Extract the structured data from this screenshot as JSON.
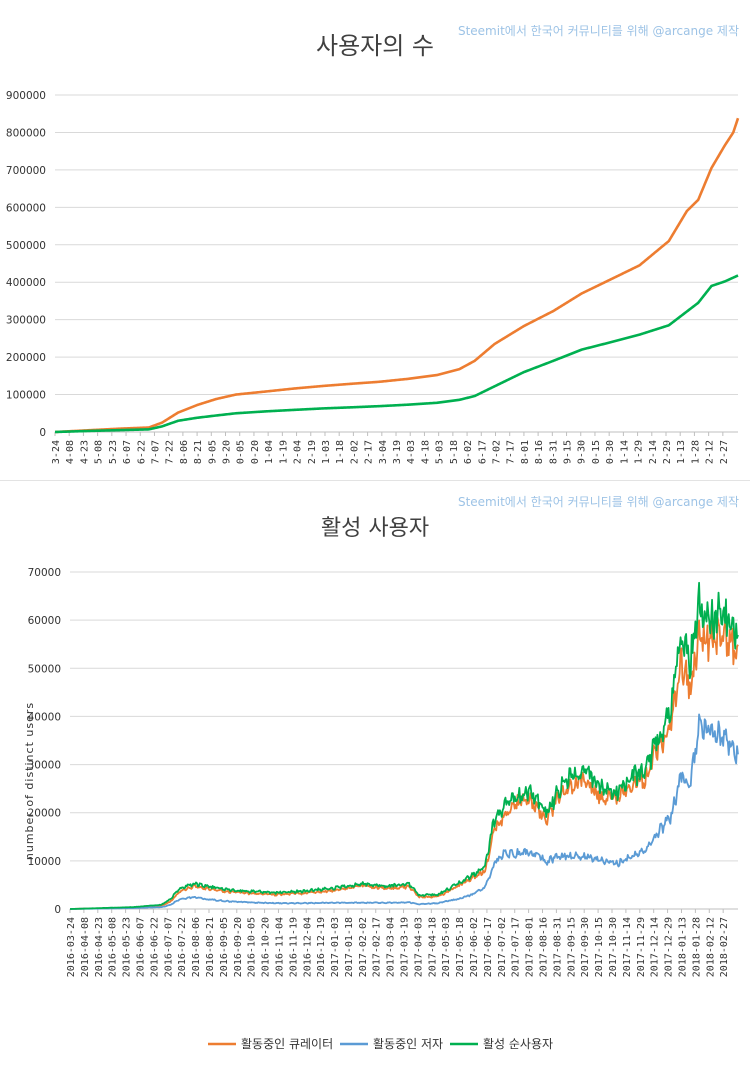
{
  "credit": "Steemit에서 한국어 커뮤니티를 위해 @arcange 제작",
  "chart_data": [
    {
      "type": "line",
      "title": "사용자의 수",
      "xlabel": "",
      "ylabel": "",
      "ylim": [
        0,
        900000
      ],
      "yticks": [
        0,
        100000,
        200000,
        300000,
        400000,
        500000,
        600000,
        700000,
        800000,
        900000
      ],
      "grid": true,
      "x_tick_labels": [
        "3-24",
        "4-08",
        "4-23",
        "5-08",
        "5-23",
        "6-07",
        "6-22",
        "7-07",
        "7-22",
        "8-06",
        "8-21",
        "9-05",
        "9-20",
        "0-05",
        "0-20",
        "1-04",
        "1-19",
        "2-04",
        "2-19",
        "1-03",
        "1-18",
        "2-02",
        "2-17",
        "3-04",
        "3-19",
        "4-03",
        "4-18",
        "5-03",
        "5-18",
        "6-02",
        "6-17",
        "7-02",
        "7-17",
        "8-01",
        "8-16",
        "8-31",
        "9-15",
        "9-30",
        "0-15",
        "0-30",
        "1-14",
        "1-29",
        "2-14",
        "2-29",
        "1-13",
        "1-28",
        "2-12",
        "2-27"
      ],
      "x_start": "2016-03-24",
      "x_end": "2018-03-15",
      "series": [
        {
          "color": "#ed7d31",
          "points": [
            [
              "2016-03-24",
              0
            ],
            [
              "2016-05-01",
              5000
            ],
            [
              "2016-06-01",
              9000
            ],
            [
              "2016-07-01",
              12000
            ],
            [
              "2016-07-15",
              25000
            ],
            [
              "2016-08-01",
              52000
            ],
            [
              "2016-08-21",
              72000
            ],
            [
              "2016-09-10",
              88000
            ],
            [
              "2016-10-01",
              100000
            ],
            [
              "2016-11-01",
              108000
            ],
            [
              "2016-12-01",
              116000
            ],
            [
              "2017-01-01",
              123000
            ],
            [
              "2017-02-01",
              129000
            ],
            [
              "2017-03-01",
              134000
            ],
            [
              "2017-04-01",
              142000
            ],
            [
              "2017-05-01",
              152000
            ],
            [
              "2017-05-25",
              168000
            ],
            [
              "2017-06-10",
              190000
            ],
            [
              "2017-07-01",
              235000
            ],
            [
              "2017-08-01",
              283000
            ],
            [
              "2017-09-01",
              323000
            ],
            [
              "2017-10-01",
              370000
            ],
            [
              "2017-11-01",
              408000
            ],
            [
              "2017-12-01",
              445000
            ],
            [
              "2018-01-01",
              510000
            ],
            [
              "2018-01-20",
              590000
            ],
            [
              "2018-02-01",
              620000
            ],
            [
              "2018-02-15",
              705000
            ],
            [
              "2018-03-01",
              765000
            ],
            [
              "2018-03-10",
              800000
            ],
            [
              "2018-03-15",
              838000
            ]
          ]
        },
        {
          "color": "#00b050",
          "points": [
            [
              "2016-03-24",
              0
            ],
            [
              "2016-05-01",
              3000
            ],
            [
              "2016-06-01",
              5000
            ],
            [
              "2016-07-01",
              7000
            ],
            [
              "2016-07-15",
              15000
            ],
            [
              "2016-08-01",
              30000
            ],
            [
              "2016-08-21",
              38000
            ],
            [
              "2016-09-10",
              44000
            ],
            [
              "2016-10-01",
              50000
            ],
            [
              "2016-11-01",
              55000
            ],
            [
              "2016-12-01",
              59000
            ],
            [
              "2017-01-01",
              63000
            ],
            [
              "2017-02-01",
              66000
            ],
            [
              "2017-03-01",
              69000
            ],
            [
              "2017-04-01",
              73000
            ],
            [
              "2017-05-01",
              78000
            ],
            [
              "2017-05-25",
              86000
            ],
            [
              "2017-06-10",
              96000
            ],
            [
              "2017-07-01",
              122000
            ],
            [
              "2017-08-01",
              160000
            ],
            [
              "2017-09-01",
              190000
            ],
            [
              "2017-10-01",
              220000
            ],
            [
              "2017-11-01",
              240000
            ],
            [
              "2017-12-01",
              260000
            ],
            [
              "2018-01-01",
              285000
            ],
            [
              "2018-02-01",
              345000
            ],
            [
              "2018-02-15",
              390000
            ],
            [
              "2018-03-01",
              402000
            ],
            [
              "2018-03-15",
              418000
            ]
          ]
        }
      ]
    },
    {
      "type": "line",
      "title": "활성 사용자",
      "xlabel": "",
      "ylabel": "number of distinct users",
      "ylim": [
        0,
        70000
      ],
      "yticks": [
        0,
        10000,
        20000,
        30000,
        40000,
        50000,
        60000,
        70000
      ],
      "grid": true,
      "legend_position": "bottom",
      "x_tick_labels": [
        "2016-03-24",
        "2016-04-08",
        "2016-04-23",
        "2016-05-08",
        "2016-05-23",
        "2016-06-07",
        "2016-06-22",
        "2016-07-07",
        "2016-07-22",
        "2016-08-06",
        "2016-08-21",
        "2016-09-05",
        "2016-09-20",
        "2016-10-05",
        "2016-10-20",
        "2016-11-04",
        "2016-11-19",
        "2016-12-04",
        "2016-12-19",
        "2017-01-03",
        "2017-01-18",
        "2017-02-02",
        "2017-02-17",
        "2017-03-04",
        "2017-03-19",
        "2017-04-03",
        "2017-04-18",
        "2017-05-03",
        "2017-05-18",
        "2017-06-02",
        "2017-06-17",
        "2017-07-02",
        "2017-07-17",
        "2017-08-01",
        "2017-08-16",
        "2017-08-31",
        "2017-09-15",
        "2017-09-30",
        "2017-10-15",
        "2017-10-30",
        "2017-11-14",
        "2017-11-29",
        "2017-12-14",
        "2017-12-29",
        "2018-01-13",
        "2018-01-28",
        "2018-02-12",
        "2018-02-27"
      ],
      "x_start": "2016-03-24",
      "x_end": "2018-03-15",
      "series": [
        {
          "name": "활동중인 큐레이터",
          "color": "#ed7d31",
          "points": [
            [
              "2016-03-24",
              0
            ],
            [
              "2016-06-01",
              300
            ],
            [
              "2016-07-01",
              700
            ],
            [
              "2016-07-10",
              1500
            ],
            [
              "2016-07-20",
              3500
            ],
            [
              "2016-08-05",
              4800
            ],
            [
              "2016-08-20",
              4200
            ],
            [
              "2016-09-10",
              3600
            ],
            [
              "2016-10-01",
              3300
            ],
            [
              "2016-11-01",
              3000
            ],
            [
              "2016-12-01",
              3300
            ],
            [
              "2017-01-01",
              3800
            ],
            [
              "2017-02-01",
              4800
            ],
            [
              "2017-03-01",
              4300
            ],
            [
              "2017-03-25",
              4600
            ],
            [
              "2017-04-05",
              2500
            ],
            [
              "2017-04-25",
              2600
            ],
            [
              "2017-05-15",
              4500
            ],
            [
              "2017-06-01",
              6500
            ],
            [
              "2017-06-15",
              8000
            ],
            [
              "2017-06-25",
              17000
            ],
            [
              "2017-07-05",
              19000
            ],
            [
              "2017-07-20",
              22000
            ],
            [
              "2017-08-01",
              23000
            ],
            [
              "2017-08-20",
              18500
            ],
            [
              "2017-09-05",
              24000
            ],
            [
              "2017-09-25",
              27000
            ],
            [
              "2017-10-05",
              26000
            ],
            [
              "2017-10-20",
              23000
            ],
            [
              "2017-11-05",
              23000
            ],
            [
              "2017-11-20",
              26000
            ],
            [
              "2017-12-05",
              27000
            ],
            [
              "2017-12-15",
              32000
            ],
            [
              "2018-01-01",
              38000
            ],
            [
              "2018-01-13",
              52000
            ],
            [
              "2018-01-22",
              46000
            ],
            [
              "2018-02-01",
              57000
            ],
            [
              "2018-02-15",
              56000
            ],
            [
              "2018-03-01",
              57000
            ],
            [
              "2018-03-10",
              54000
            ],
            [
              "2018-03-15",
              52000
            ]
          ]
        },
        {
          "name": "활동중인 저자",
          "color": "#5b9bd5",
          "points": [
            [
              "2016-03-24",
              0
            ],
            [
              "2016-06-01",
              200
            ],
            [
              "2016-07-01",
              400
            ],
            [
              "2016-07-10",
              800
            ],
            [
              "2016-07-20",
              2000
            ],
            [
              "2016-08-05",
              2500
            ],
            [
              "2016-08-20",
              2000
            ],
            [
              "2016-09-10",
              1600
            ],
            [
              "2016-10-01",
              1400
            ],
            [
              "2016-11-01",
              1200
            ],
            [
              "2016-12-01",
              1200
            ],
            [
              "2017-01-01",
              1300
            ],
            [
              "2017-02-01",
              1300
            ],
            [
              "2017-03-01",
              1300
            ],
            [
              "2017-03-25",
              1400
            ],
            [
              "2017-04-05",
              1000
            ],
            [
              "2017-04-25",
              1200
            ],
            [
              "2017-05-15",
              2000
            ],
            [
              "2017-06-01",
              3000
            ],
            [
              "2017-06-15",
              4500
            ],
            [
              "2017-06-25",
              9500
            ],
            [
              "2017-07-05",
              11500
            ],
            [
              "2017-07-20",
              11500
            ],
            [
              "2017-08-01",
              12000
            ],
            [
              "2017-08-20",
              10000
            ],
            [
              "2017-09-05",
              11000
            ],
            [
              "2017-09-25",
              11000
            ],
            [
              "2017-10-05",
              11000
            ],
            [
              "2017-10-20",
              10000
            ],
            [
              "2017-11-05",
              9500
            ],
            [
              "2017-11-20",
              11000
            ],
            [
              "2017-12-05",
              12000
            ],
            [
              "2017-12-15",
              15000
            ],
            [
              "2018-01-01",
              19000
            ],
            [
              "2018-01-13",
              28000
            ],
            [
              "2018-01-22",
              26000
            ],
            [
              "2018-02-01",
              38000
            ],
            [
              "2018-02-15",
              37000
            ],
            [
              "2018-03-01",
              36000
            ],
            [
              "2018-03-10",
              33000
            ],
            [
              "2018-03-15",
              31000
            ]
          ]
        },
        {
          "name": "활성 순사용자",
          "color": "#00b050",
          "points": [
            [
              "2016-03-24",
              0
            ],
            [
              "2016-06-01",
              400
            ],
            [
              "2016-07-01",
              900
            ],
            [
              "2016-07-10",
              2000
            ],
            [
              "2016-07-20",
              4200
            ],
            [
              "2016-08-05",
              5300
            ],
            [
              "2016-08-20",
              4700
            ],
            [
              "2016-09-10",
              4000
            ],
            [
              "2016-10-01",
              3700
            ],
            [
              "2016-11-01",
              3400
            ],
            [
              "2016-12-01",
              3700
            ],
            [
              "2017-01-01",
              4300
            ],
            [
              "2017-02-01",
              5200
            ],
            [
              "2017-03-01",
              4800
            ],
            [
              "2017-03-25",
              5100
            ],
            [
              "2017-04-05",
              2800
            ],
            [
              "2017-04-25",
              3000
            ],
            [
              "2017-05-15",
              5000
            ],
            [
              "2017-06-01",
              7000
            ],
            [
              "2017-06-15",
              8800
            ],
            [
              "2017-06-25",
              18500
            ],
            [
              "2017-07-05",
              21000
            ],
            [
              "2017-07-20",
              23500
            ],
            [
              "2017-08-01",
              24500
            ],
            [
              "2017-08-20",
              20000
            ],
            [
              "2017-09-05",
              25500
            ],
            [
              "2017-09-25",
              29000
            ],
            [
              "2017-10-05",
              28000
            ],
            [
              "2017-10-20",
              24500
            ],
            [
              "2017-11-05",
              24500
            ],
            [
              "2017-11-20",
              27500
            ],
            [
              "2017-12-05",
              28500
            ],
            [
              "2017-12-15",
              34000
            ],
            [
              "2018-01-01",
              41000
            ],
            [
              "2018-01-13",
              57000
            ],
            [
              "2018-01-22",
              51000
            ],
            [
              "2018-02-01",
              63000
            ],
            [
              "2018-02-15",
              60000
            ],
            [
              "2018-03-01",
              61000
            ],
            [
              "2018-03-10",
              59000
            ],
            [
              "2018-03-15",
              56000
            ]
          ]
        }
      ]
    }
  ]
}
